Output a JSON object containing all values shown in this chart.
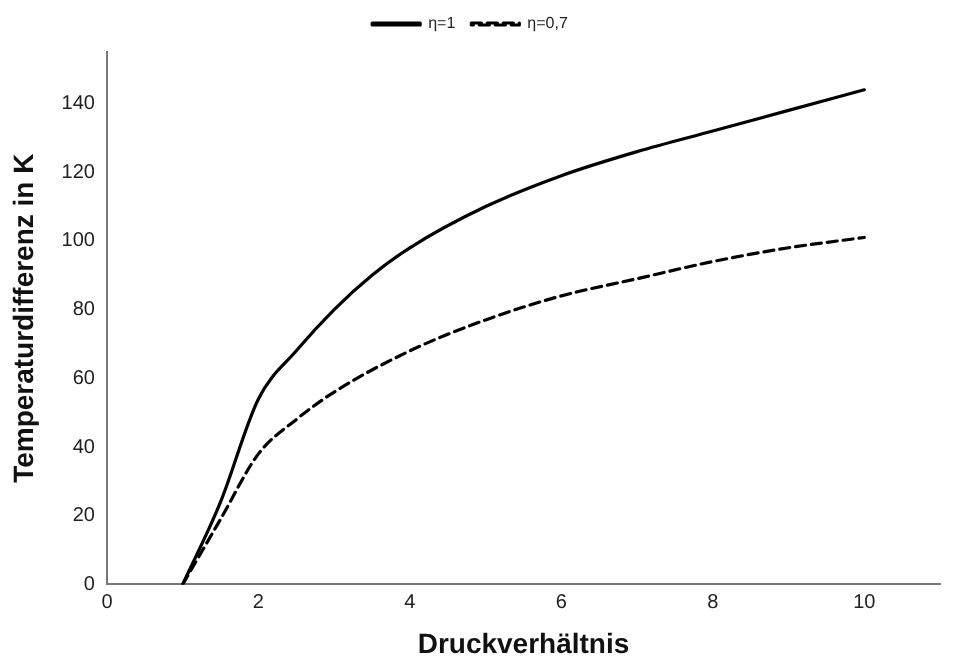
{
  "chart_data": {
    "type": "line",
    "xlabel": "Druckverhältnis",
    "ylabel": "Temperaturdifferenz in K",
    "xlim": [
      0,
      11
    ],
    "ylim": [
      0,
      155
    ],
    "xticks": [
      0,
      2,
      4,
      6,
      8,
      10
    ],
    "yticks": [
      0,
      20,
      40,
      60,
      80,
      100,
      120,
      140
    ],
    "grid": false,
    "legend": "top",
    "marker": "none",
    "series": [
      {
        "name": "η=1",
        "color": "#000000",
        "line_style": "solid",
        "x": [
          1,
          1.5,
          2,
          2.5,
          3,
          3.5,
          4,
          5,
          6,
          7,
          8,
          9,
          10
        ],
        "values": [
          0,
          24,
          54,
          68,
          80,
          90,
          98,
          110,
          119,
          126,
          132,
          138,
          144
        ]
      },
      {
        "name": "η=0,7",
        "color": "#000000",
        "line_style": "dashed",
        "x": [
          1,
          1.5,
          2,
          2.5,
          3,
          4,
          5,
          6,
          7,
          8,
          9,
          10
        ],
        "values": [
          0,
          19,
          38,
          48,
          56,
          68,
          77,
          84,
          89,
          94,
          98,
          101
        ]
      }
    ]
  }
}
